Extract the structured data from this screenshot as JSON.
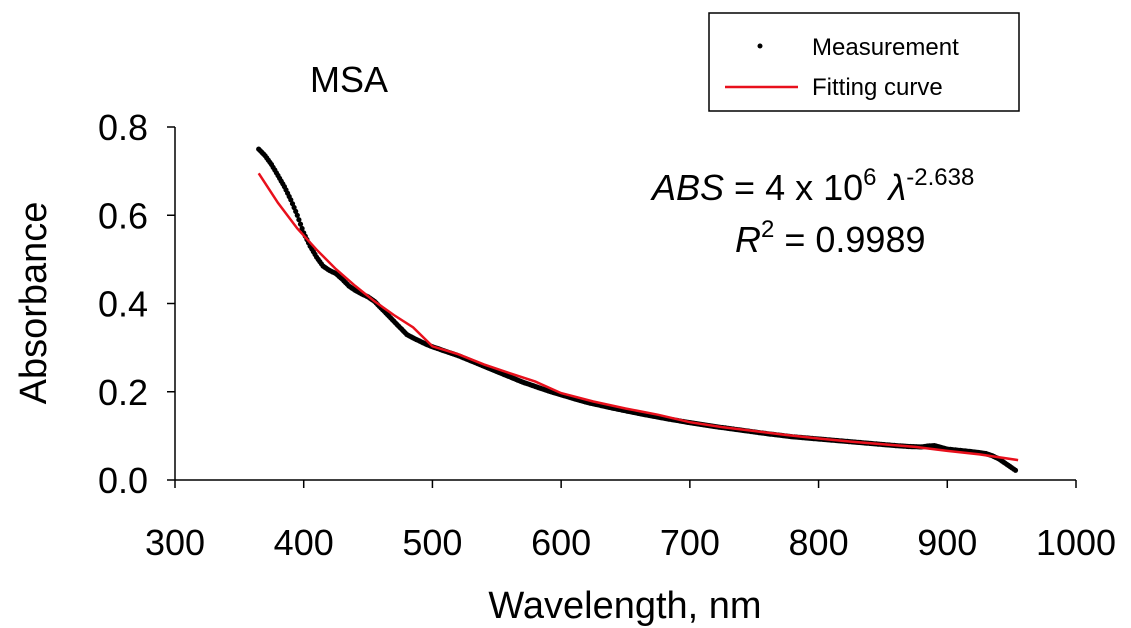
{
  "chart_data": {
    "type": "scatter",
    "title": "MSA",
    "xlabel": "Wavelength, nm",
    "ylabel": "Absorbance",
    "xlim": [
      300,
      1000
    ],
    "ylim": [
      0.0,
      0.8
    ],
    "x_ticks": [
      "300",
      "400",
      "500",
      "600",
      "700",
      "800",
      "900",
      "1000"
    ],
    "y_ticks": [
      "0.0",
      "0.2",
      "0.4",
      "0.6",
      "0.8"
    ],
    "grid": false,
    "legend_position": "top-right",
    "series": [
      {
        "name": "Measurement",
        "style": "points",
        "color": "#000000",
        "x": [
          365,
          370,
          375,
          380,
          385,
          390,
          395,
          400,
          405,
          410,
          415,
          420,
          425,
          430,
          435,
          440,
          445,
          450,
          455,
          460,
          465,
          470,
          475,
          480,
          485,
          490,
          495,
          500,
          510,
          520,
          530,
          540,
          550,
          560,
          570,
          580,
          590,
          600,
          620,
          640,
          660,
          680,
          700,
          720,
          740,
          760,
          780,
          800,
          820,
          840,
          860,
          870,
          880,
          885,
          890,
          895,
          900,
          910,
          920,
          925,
          930,
          935,
          940,
          945,
          950,
          953
        ],
        "y": [
          0.75,
          0.735,
          0.715,
          0.69,
          0.665,
          0.635,
          0.6,
          0.56,
          0.53,
          0.505,
          0.485,
          0.475,
          0.468,
          0.455,
          0.44,
          0.43,
          0.422,
          0.415,
          0.405,
          0.39,
          0.375,
          0.36,
          0.345,
          0.33,
          0.322,
          0.315,
          0.308,
          0.302,
          0.292,
          0.282,
          0.27,
          0.258,
          0.246,
          0.234,
          0.222,
          0.212,
          0.202,
          0.193,
          0.176,
          0.163,
          0.151,
          0.14,
          0.13,
          0.121,
          0.113,
          0.105,
          0.098,
          0.093,
          0.088,
          0.083,
          0.078,
          0.076,
          0.075,
          0.077,
          0.078,
          0.074,
          0.07,
          0.067,
          0.064,
          0.062,
          0.06,
          0.055,
          0.048,
          0.038,
          0.028,
          0.022
        ]
      },
      {
        "name": "Fitting curve",
        "style": "line",
        "color": "#e8101c",
        "x": [
          365,
          380,
          395,
          410,
          425,
          440,
          455,
          470,
          485,
          500,
          520,
          540,
          560,
          580,
          600,
          625,
          650,
          675,
          700,
          725,
          750,
          775,
          800,
          825,
          850,
          875,
          900,
          925,
          955
        ],
        "y": [
          0.695,
          0.628,
          0.57,
          0.522,
          0.478,
          0.44,
          0.405,
          0.374,
          0.346,
          0.303,
          0.285,
          0.262,
          0.242,
          0.223,
          0.197,
          0.178,
          0.162,
          0.148,
          0.131,
          0.12,
          0.111,
          0.102,
          0.094,
          0.087,
          0.081,
          0.075,
          0.066,
          0.058,
          0.045
        ]
      }
    ],
    "annotations": {
      "equation_lhs": "ABS",
      "equation_mid": " = 4 x 10",
      "equation_exp": "6",
      "equation_lambda": "λ",
      "equation_exp2": "-2.638",
      "r2_var": "R",
      "r2_exp": "2",
      "r2_rest": " = 0.9989"
    }
  }
}
